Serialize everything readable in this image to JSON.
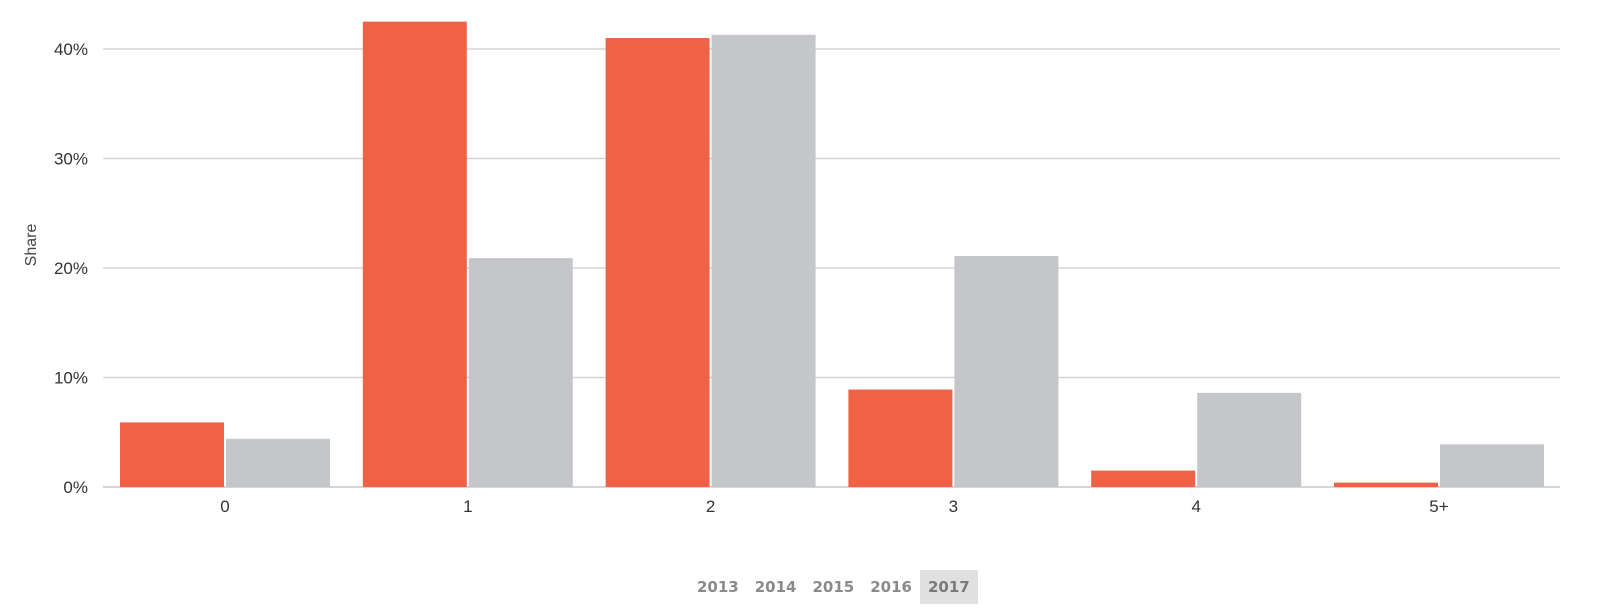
{
  "chart_data": {
    "type": "bar",
    "ylabel": "Share",
    "categories": [
      "0",
      "1",
      "2",
      "3",
      "4",
      "5+"
    ],
    "series": [
      {
        "color": "#ef6246",
        "values": [
          5.9,
          42.5,
          41.0,
          8.9,
          1.5,
          0.4
        ]
      },
      {
        "color": "#c5c6c9",
        "values": [
          4.4,
          20.9,
          41.3,
          21.1,
          8.6,
          3.9
        ]
      }
    ],
    "ylim": [
      0,
      42
    ],
    "yticks": [
      0,
      10,
      20,
      30,
      40
    ],
    "ytick_format": "%",
    "grid": true
  },
  "year_selector": {
    "years": [
      "2013",
      "2014",
      "2015",
      "2016",
      "2017"
    ],
    "selected": "2017"
  }
}
